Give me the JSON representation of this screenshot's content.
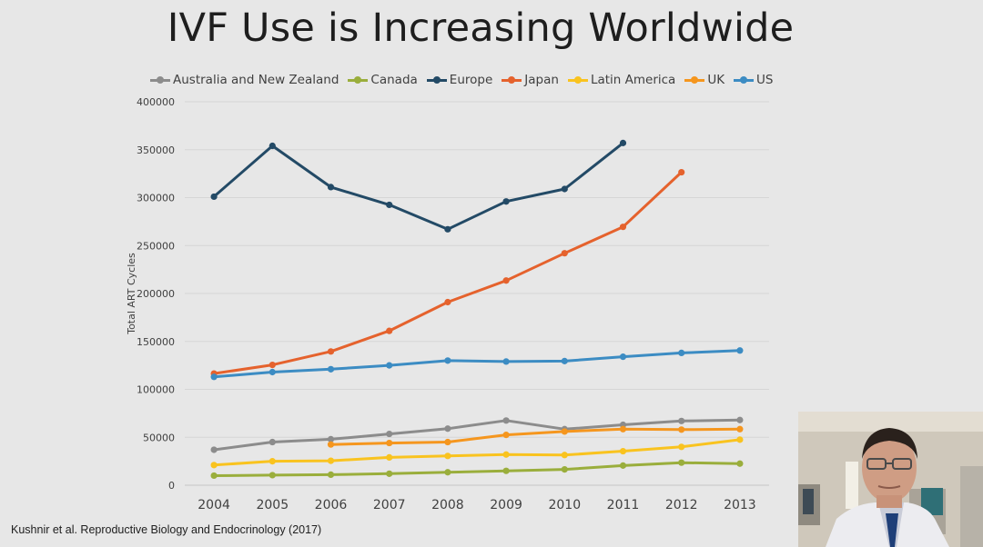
{
  "slide": {
    "title": "IVF Use is Increasing Worldwide",
    "citation": "Kushnir et al. Reproductive Biology and Endocrinology (2017)"
  },
  "chart_data": {
    "type": "line",
    "title": "",
    "xlabel": "",
    "ylabel": "Total ART Cycles",
    "ylim": [
      0,
      400000
    ],
    "yticks": [
      "0",
      "50000",
      "100000",
      "150000",
      "200000",
      "250000",
      "300000",
      "350000",
      "400000"
    ],
    "x": [
      "2004",
      "2005",
      "2006",
      "2007",
      "2008",
      "2009",
      "2010",
      "2011",
      "2012",
      "2013"
    ],
    "grid": "horizontal",
    "legend_position": "top",
    "series": [
      {
        "name": "Australia and New Zealand",
        "color": "#8c8c8c",
        "values": [
          37000,
          45000,
          48000,
          53500,
          59000,
          67500,
          58500,
          63000,
          67000,
          68000
        ]
      },
      {
        "name": "Canada",
        "color": "#9aae3c",
        "values": [
          10000,
          10500,
          11000,
          12000,
          13500,
          15000,
          16500,
          20500,
          23500,
          22500
        ]
      },
      {
        "name": "Europe",
        "color": "#234a66",
        "values": [
          301000,
          354000,
          311000,
          292500,
          267000,
          296000,
          309000,
          357000,
          null,
          null
        ]
      },
      {
        "name": "Japan",
        "color": "#e5622d",
        "values": [
          116500,
          125500,
          139500,
          161000,
          191000,
          213500,
          242000,
          269500,
          326500,
          null
        ]
      },
      {
        "name": "Latin America",
        "color": "#f9c31f",
        "values": [
          21000,
          25000,
          25500,
          29000,
          30500,
          32000,
          31500,
          35500,
          40000,
          47500
        ]
      },
      {
        "name": "UK",
        "color": "#f5961e",
        "values": [
          null,
          null,
          42500,
          44000,
          45000,
          52500,
          56000,
          58500,
          58000,
          58500
        ]
      },
      {
        "name": "US",
        "color": "#3c8cc3",
        "values": [
          113000,
          118000,
          121000,
          125000,
          130000,
          129000,
          129500,
          134000,
          138000,
          140500
        ]
      }
    ]
  },
  "webcam": {
    "description_icon": "presenter-video-icon"
  }
}
